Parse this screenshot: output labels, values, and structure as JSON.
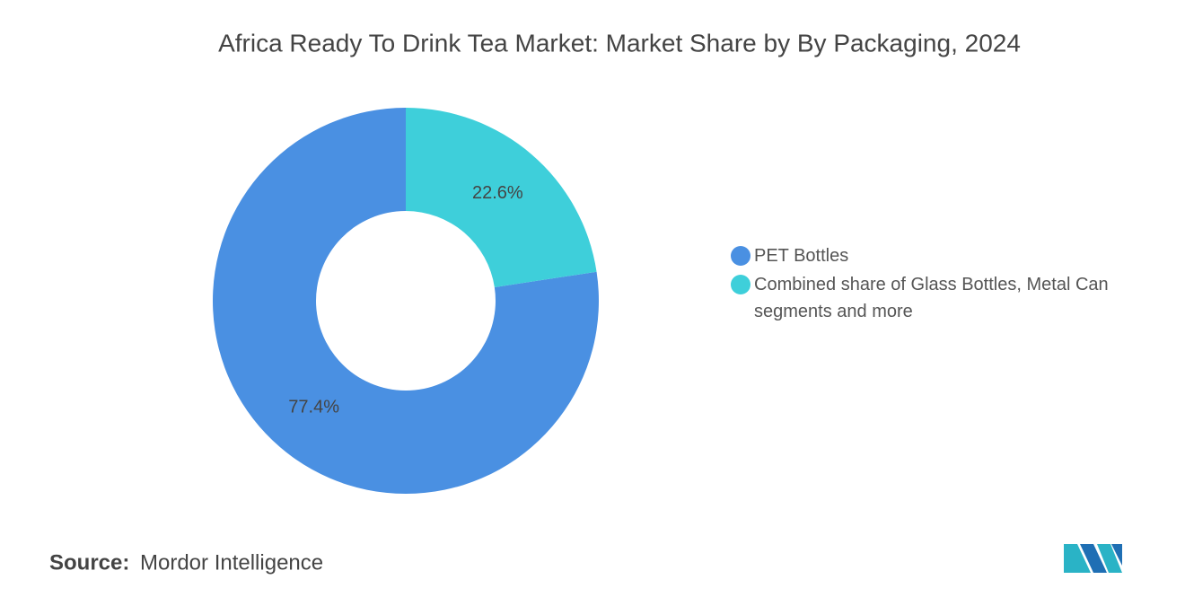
{
  "chart_data": {
    "type": "donut",
    "title": "Africa Ready To Drink Tea Market: Market Share by By Packaging, 2024",
    "categories": [
      "PET Bottles",
      "Combined share of Glass Bottles, Metal Can segments and more"
    ],
    "values": [
      77.4,
      22.6
    ],
    "value_labels": [
      "77.4%",
      "22.6%"
    ],
    "colors": [
      "#4a90e2",
      "#3ecfda"
    ],
    "legend": "right"
  },
  "footer": {
    "source_label": "Source:",
    "source": "Mordor Intelligence"
  }
}
